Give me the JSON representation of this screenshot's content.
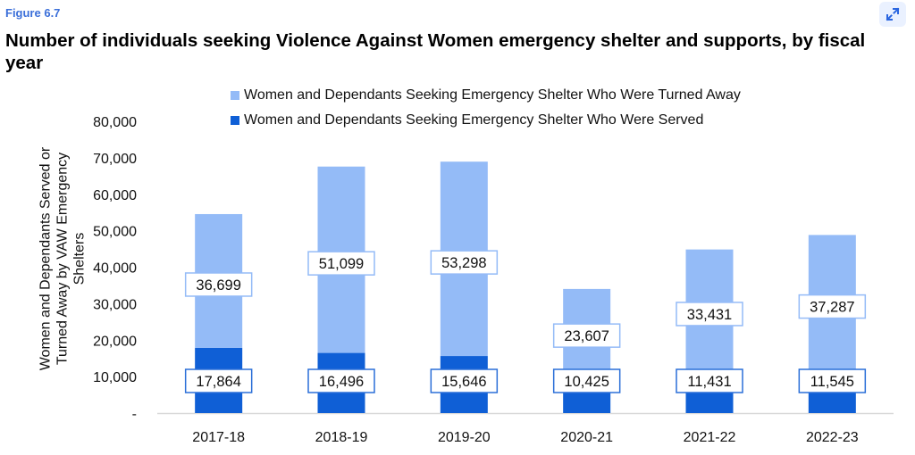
{
  "figure_label": "Figure 6.7",
  "expand_icon": "expand-arrows-icon",
  "colors": {
    "turned_away": "#94bbf7",
    "served": "#0f5fd6",
    "turned_away_label_border": "#94bbf7",
    "served_label_border": "#2a6fd8",
    "figure_label": "#3b6fd9",
    "expand_button_bg": "#eaf1ff",
    "expand_icon": "#2b66e0",
    "axis_line": "#d9d9d9"
  },
  "chart_data": {
    "type": "bar",
    "stacked": true,
    "title": "Number of individuals seeking Violence Against Women emergency shelter and supports, by fiscal year",
    "xlabel": "",
    "ylabel": "Women and Dependants Served or Turned Away by VAW Emergency Shelters",
    "categories": [
      "2017-18",
      "2018-19",
      "2019-20",
      "2020-21",
      "2021-22",
      "2022-23"
    ],
    "series": [
      {
        "name": "Women and Dependants Seeking Emergency Shelter Who Were Served",
        "values": [
          17864,
          16496,
          15646,
          10425,
          11431,
          11545
        ],
        "labels": [
          "17,864",
          "16,496",
          "15,646",
          "10,425",
          "11,431",
          "11,545"
        ]
      },
      {
        "name": "Women and Dependants Seeking Emergency Shelter Who Were Turned Away",
        "values": [
          36699,
          51099,
          53298,
          23607,
          33431,
          37287
        ],
        "labels": [
          "36,699",
          "51,099",
          "53,298",
          "23,607",
          "33,431",
          "37,287"
        ]
      }
    ],
    "legend_order": [
      "Women and Dependants Seeking Emergency Shelter Who Were Turned Away",
      "Women and Dependants Seeking Emergency Shelter Who Were Served"
    ],
    "legend_position": "top",
    "ylim": [
      0,
      80000
    ],
    "yticks": [
      0,
      10000,
      20000,
      30000,
      40000,
      50000,
      60000,
      70000,
      80000
    ],
    "ytick_labels": [
      "-",
      "10,000",
      "20,000",
      "30,000",
      "40,000",
      "50,000",
      "60,000",
      "70,000",
      "80,000"
    ],
    "grid": false
  }
}
